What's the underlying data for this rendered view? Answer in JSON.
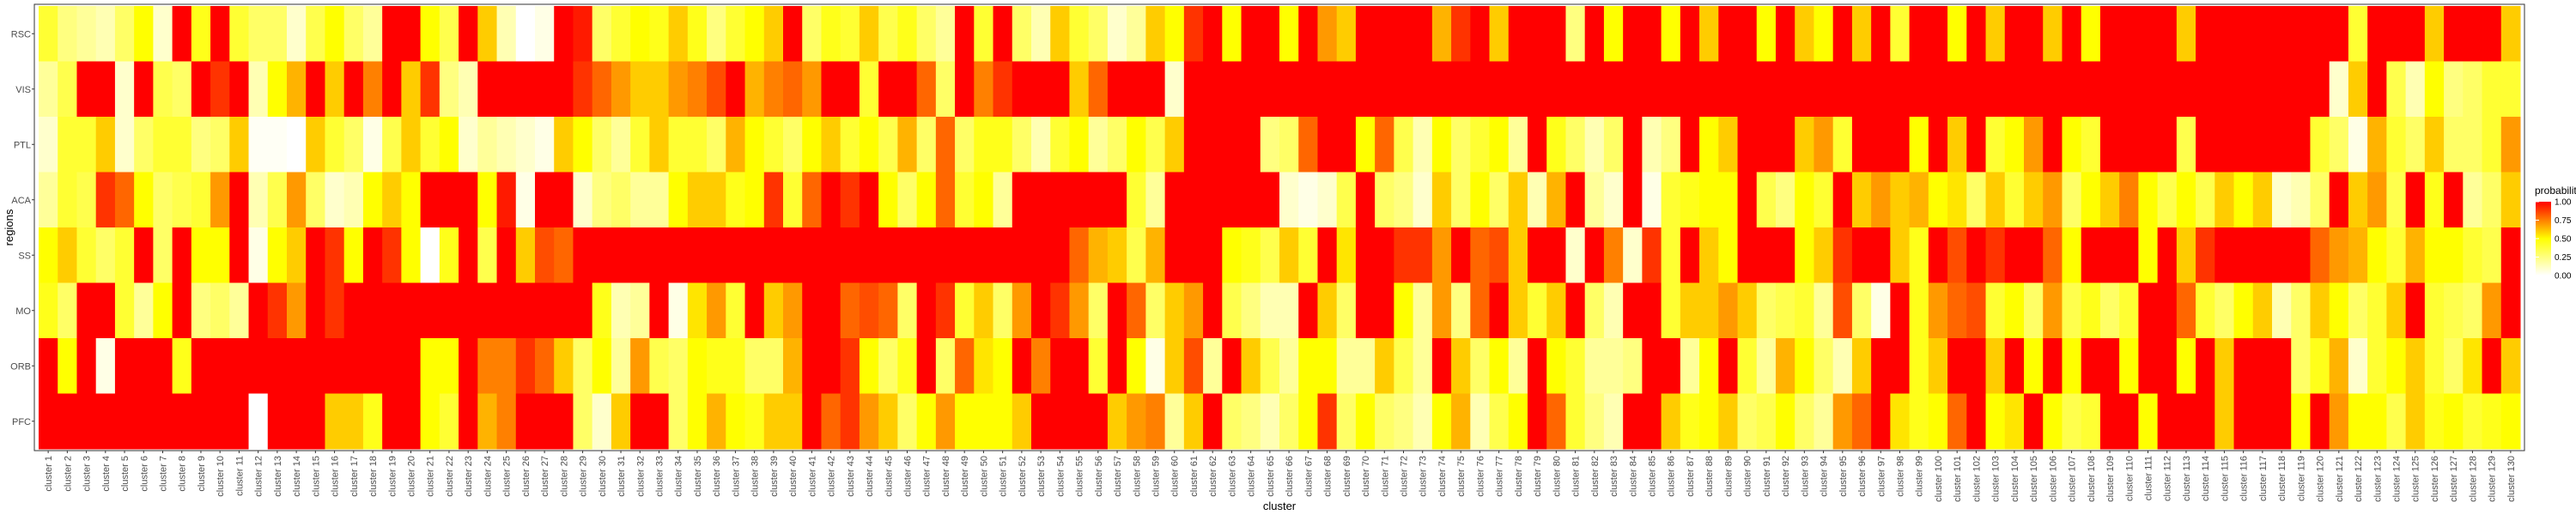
{
  "chart_data": {
    "type": "heatmap",
    "xlabel": "cluster",
    "ylabel": "regions",
    "legend": {
      "title": "probability",
      "placement": "right",
      "ticks": [
        {
          "value": 1.0,
          "label": "1.00"
        },
        {
          "value": 0.75,
          "label": "0.75"
        },
        {
          "value": 0.5,
          "label": "0.50"
        },
        {
          "value": 0.25,
          "label": "0.25"
        },
        {
          "value": 0.0,
          "label": "0.00"
        }
      ]
    },
    "color_scale": {
      "low": "#ffffff",
      "mid": "#ffff00",
      "high": "#ff0000"
    },
    "y_categories": [
      "RSC",
      "VIS",
      "PTL",
      "ACA",
      "SS",
      "MO",
      "ORB",
      "PFC"
    ],
    "x_categories": [
      "cluster 1",
      "cluster 2",
      "cluster 3",
      "cluster 4",
      "cluster 5",
      "cluster 6",
      "cluster 7",
      "cluster 8",
      "cluster 9",
      "cluster 10",
      "cluster 11",
      "cluster 12",
      "cluster 13",
      "cluster 14",
      "cluster 15",
      "cluster 16",
      "cluster 17",
      "cluster 18",
      "cluster 19",
      "cluster 20",
      "cluster 21",
      "cluster 22",
      "cluster 23",
      "cluster 24",
      "cluster 25",
      "cluster 26",
      "cluster 27",
      "cluster 28",
      "cluster 29",
      "cluster 30",
      "cluster 31",
      "cluster 32",
      "cluster 33",
      "cluster 34",
      "cluster 35",
      "cluster 36",
      "cluster 37",
      "cluster 38",
      "cluster 39",
      "cluster 40",
      "cluster 41",
      "cluster 42",
      "cluster 43",
      "cluster 44",
      "cluster 45",
      "cluster 46",
      "cluster 47",
      "cluster 48",
      "cluster 49",
      "cluster 50",
      "cluster 51",
      "cluster 52",
      "cluster 53",
      "cluster 54",
      "cluster 55",
      "cluster 56",
      "cluster 57",
      "cluster 58",
      "cluster 59",
      "cluster 60",
      "cluster 61",
      "cluster 62",
      "cluster 63",
      "cluster 64",
      "cluster 65",
      "cluster 66",
      "cluster 67",
      "cluster 68",
      "cluster 69",
      "cluster 70",
      "cluster 71",
      "cluster 72",
      "cluster 73",
      "cluster 74",
      "cluster 75",
      "cluster 76",
      "cluster 77",
      "cluster 78",
      "cluster 79",
      "cluster 80",
      "cluster 81",
      "cluster 82",
      "cluster 83",
      "cluster 84",
      "cluster 85",
      "cluster 86",
      "cluster 87",
      "cluster 88",
      "cluster 89",
      "cluster 90",
      "cluster 91",
      "cluster 92",
      "cluster 93",
      "cluster 94",
      "cluster 95",
      "cluster 96",
      "cluster 97",
      "cluster 98",
      "cluster 99",
      "cluster 100",
      "cluster 101",
      "cluster 102",
      "cluster 103",
      "cluster 104",
      "cluster 105",
      "cluster 106",
      "cluster 107",
      "cluster 108",
      "cluster 109",
      "cluster 110",
      "cluster 111",
      "cluster 112",
      "cluster 113",
      "cluster 114",
      "cluster 115",
      "cluster 116",
      "cluster 117",
      "cluster 118",
      "cluster 119",
      "cluster 120",
      "cluster 121",
      "cluster 122",
      "cluster 123",
      "cluster 124",
      "cluster 125",
      "cluster 126",
      "cluster 127",
      "cluster 128",
      "cluster 129",
      "cluster 130"
    ],
    "values": [
      [
        0.4,
        0.25,
        0.2,
        0.15,
        0.3,
        0.5,
        0.1,
        1,
        0.45,
        1,
        0.4,
        0.3,
        0.3,
        0.1,
        0.35,
        0.5,
        0.3,
        0.2,
        1,
        1,
        0.5,
        0.35,
        1,
        0.6,
        0.15,
        0,
        0.05,
        1,
        0.95,
        0.3,
        0.4,
        0.5,
        0.45,
        0.6,
        0.45,
        0.25,
        0.4,
        0.5,
        0.6,
        1,
        0.3,
        0.45,
        0.4,
        0.6,
        0.35,
        0.45,
        0.3,
        0.2,
        1,
        0.4,
        1,
        0.3,
        0.15,
        0.6,
        0.4,
        0.3,
        0.1,
        0.2,
        0.6,
        0.5,
        0.9,
        1,
        0.5,
        1,
        1,
        0.5,
        1,
        0.7,
        0.6,
        1,
        1,
        1,
        1,
        0.65,
        0.9,
        1,
        0.6,
        1,
        1,
        1,
        0.25,
        1,
        0.5,
        1,
        1,
        0.5,
        1,
        0.6,
        1,
        1,
        0.5,
        1,
        0.6,
        0.5,
        1,
        0.6,
        1,
        0.4,
        1,
        1,
        0.5,
        1,
        0.6,
        1,
        1,
        0.6,
        1,
        0.5,
        1,
        1,
        1,
        1,
        0.6,
        1,
        1,
        1,
        1,
        1,
        1,
        1,
        1,
        0.4,
        1,
        1,
        1,
        0.6,
        1,
        1,
        1,
        0.6
      ],
      [
        0.2,
        0.35,
        1,
        1,
        0.1,
        1,
        0.35,
        0.3,
        1,
        0.9,
        1,
        0.15,
        0.5,
        0.65,
        1,
        0.6,
        1,
        0.75,
        1,
        0.6,
        0.9,
        0.25,
        0.15,
        1,
        1,
        1,
        1,
        1,
        0.9,
        0.8,
        0.7,
        0.6,
        0.6,
        0.7,
        0.75,
        0.85,
        1,
        0.65,
        0.75,
        0.8,
        0.7,
        1,
        1,
        0.4,
        1,
        1,
        0.8,
        0.3,
        1,
        0.75,
        0.9,
        1,
        1,
        1,
        0.6,
        0.8,
        1,
        1,
        1,
        0.1,
        1,
        1,
        1,
        1,
        1,
        1,
        1,
        1,
        1,
        1,
        1,
        1,
        1,
        1,
        1,
        1,
        1,
        1,
        1,
        1,
        1,
        1,
        1,
        1,
        1,
        1,
        1,
        1,
        1,
        1,
        1,
        1,
        1,
        1,
        1,
        1,
        1,
        1,
        1,
        1,
        1,
        1,
        1,
        1,
        1,
        1,
        1,
        1,
        1,
        1,
        1,
        1,
        1,
        1,
        1,
        1,
        1,
        1,
        1,
        1,
        0.1,
        0.6,
        1,
        0.35,
        0.15,
        0.5,
        0.25,
        0.3,
        0.4,
        0.4
      ],
      [
        0.1,
        0.4,
        0.4,
        0.6,
        0.1,
        0.3,
        0.4,
        0.4,
        0.25,
        0.3,
        0.6,
        0.02,
        0.02,
        0,
        0.6,
        0.4,
        0.3,
        0.05,
        0.35,
        0.6,
        0.4,
        0.5,
        0.1,
        0.2,
        0.15,
        0.1,
        0.05,
        0.6,
        0.5,
        0.3,
        0.2,
        0.4,
        0.6,
        0.4,
        0.4,
        0.3,
        0.65,
        0.5,
        0.4,
        0.3,
        0.5,
        0.6,
        0.4,
        0.5,
        0.35,
        0.65,
        0.3,
        0.8,
        0.3,
        0.45,
        0.45,
        0.3,
        0.15,
        0.4,
        0.5,
        0.2,
        0.3,
        0.5,
        0.35,
        0.6,
        1,
        1,
        1,
        1,
        0.25,
        0.3,
        0.8,
        1,
        1,
        0.5,
        0.8,
        0.35,
        0.15,
        0.5,
        0.3,
        0.4,
        0.5,
        0.2,
        1,
        0.45,
        0.3,
        0.15,
        0.3,
        1,
        0.15,
        0.25,
        1,
        0.5,
        0.6,
        1,
        1,
        1,
        0.6,
        0.7,
        0.4,
        1,
        1,
        1,
        0.5,
        1,
        0.6,
        1,
        0.4,
        0.5,
        0.7,
        1,
        0.5,
        0.4,
        1,
        1,
        1,
        1,
        0.35,
        1,
        1,
        1,
        1,
        1,
        1,
        0.4,
        0.3,
        0.05,
        0.65,
        0.4,
        0.3,
        0.6,
        0.3,
        0.3,
        0.4,
        0.7
      ],
      [
        0.2,
        0.4,
        0.35,
        0.9,
        0.8,
        0.5,
        0.3,
        0.35,
        0.4,
        0.7,
        1,
        0.15,
        0.35,
        0.7,
        0.3,
        0.1,
        0.15,
        0.5,
        0.6,
        0.5,
        1,
        1,
        1,
        0.5,
        0.95,
        0.05,
        1,
        1,
        0.1,
        0.25,
        0.3,
        0.2,
        0.2,
        0.5,
        0.6,
        0.6,
        0.45,
        0.5,
        0.9,
        0.4,
        0.8,
        1,
        0.9,
        1,
        0.5,
        0.3,
        0.5,
        0.8,
        0.4,
        0.5,
        0.2,
        1,
        1,
        1,
        1,
        1,
        1,
        0.4,
        0.2,
        1,
        1,
        1,
        1,
        1,
        1,
        0.1,
        0.05,
        0.1,
        0.35,
        1,
        0.3,
        0.25,
        0.1,
        0.6,
        0.3,
        0.5,
        0.3,
        0.6,
        0.15,
        0.65,
        1,
        0.2,
        0.1,
        1,
        0.05,
        0.4,
        0.45,
        0.5,
        0.5,
        1,
        0.35,
        0.25,
        0.5,
        0.4,
        1,
        0.6,
        0.7,
        0.6,
        0.65,
        0.5,
        0.55,
        0.3,
        0.6,
        0.4,
        0.6,
        0.7,
        0.3,
        0.5,
        0.6,
        0.75,
        0.5,
        0.35,
        0.5,
        0.35,
        0.6,
        0.5,
        0.6,
        0.1,
        0.15,
        0.3,
        1,
        0.6,
        0.7,
        0.35,
        1,
        0.45,
        1,
        0.2,
        0.3,
        0.6
      ],
      [
        0.5,
        0.6,
        0.4,
        0.3,
        0.4,
        1,
        0.3,
        1,
        0.5,
        0.5,
        1,
        0.05,
        0.5,
        0.6,
        1,
        0.9,
        0.5,
        1,
        0.9,
        0.5,
        0,
        0.45,
        1,
        0.35,
        1,
        0.6,
        0.85,
        0.8,
        1,
        1,
        1,
        1,
        1,
        1,
        1,
        1,
        1,
        1,
        1,
        1,
        1,
        1,
        1,
        1,
        1,
        1,
        1,
        1,
        1,
        1,
        1,
        1,
        1,
        1,
        0.8,
        0.65,
        0.6,
        0.35,
        0.65,
        1,
        1,
        1,
        0.5,
        0.45,
        0.35,
        0.6,
        0.4,
        1,
        0.55,
        1,
        1,
        0.9,
        0.9,
        0.7,
        1,
        0.8,
        0.85,
        0.6,
        1,
        1,
        0.1,
        1,
        0.75,
        0.1,
        0.9,
        0.4,
        1,
        0.6,
        0.5,
        1,
        1,
        1,
        0.5,
        0.6,
        0.9,
        1,
        1,
        0.6,
        0.45,
        1,
        0.85,
        1,
        0.9,
        1,
        1,
        0.8,
        0.5,
        1,
        1,
        1,
        0.5,
        1,
        0.6,
        0.9,
        1,
        1,
        1,
        1,
        1,
        0.8,
        0.7,
        0.65,
        0.5,
        0.4,
        0.65,
        0.5,
        0.5,
        0.4,
        0.35,
        1
      ],
      [
        0.45,
        0.3,
        1,
        1,
        0.4,
        0.2,
        0.5,
        1,
        0.25,
        0.3,
        0.2,
        1,
        0.9,
        0.7,
        1,
        0.9,
        1,
        1,
        1,
        1,
        1,
        1,
        1,
        1,
        1,
        1,
        1,
        1,
        1,
        0.45,
        0.15,
        0.2,
        1,
        0.05,
        0.55,
        0.7,
        0.4,
        1,
        0.6,
        0.7,
        1,
        1,
        0.8,
        0.85,
        0.8,
        0.3,
        1,
        0.9,
        0.4,
        0.6,
        0.3,
        0.7,
        1,
        0.9,
        0.7,
        0.3,
        1,
        0.8,
        0.3,
        0.6,
        0.7,
        1,
        0.35,
        0.25,
        0.15,
        0.15,
        1,
        0.6,
        0.3,
        1,
        1,
        0.5,
        0.2,
        0.7,
        0.25,
        0.8,
        1,
        0.6,
        0.4,
        0.6,
        1,
        0.3,
        0.15,
        1,
        1,
        0.4,
        0.6,
        0.6,
        0.7,
        0.6,
        0.3,
        0.35,
        0.4,
        0.2,
        0.85,
        0.3,
        0.05,
        1,
        0.45,
        0.7,
        0.8,
        0.85,
        0.4,
        0.5,
        0.3,
        0.7,
        0.35,
        0.45,
        0.3,
        0.4,
        1,
        1,
        0.8,
        0.4,
        0.3,
        0.5,
        0.6,
        0.15,
        0.3,
        0.6,
        0.5,
        0.3,
        0.4,
        0.6,
        1,
        0.4,
        0.35,
        0.3,
        0.7,
        1
      ],
      [
        1,
        0.5,
        1,
        0.05,
        1,
        1,
        1,
        0.45,
        1,
        1,
        1,
        1,
        1,
        1,
        1,
        1,
        1,
        1,
        1,
        1,
        0.5,
        0.5,
        1,
        0.75,
        0.75,
        0.9,
        0.8,
        0.6,
        0.3,
        0.5,
        0.2,
        0.7,
        0.35,
        0.3,
        0.5,
        0.45,
        0.45,
        0.3,
        0.3,
        0.65,
        1,
        1,
        0.9,
        0.5,
        0.3,
        0.45,
        1,
        0.3,
        0.8,
        0.55,
        0.5,
        1,
        0.75,
        1,
        1,
        0.4,
        1,
        0.5,
        0.05,
        0.6,
        0.85,
        0.2,
        1,
        0.6,
        0.35,
        0.2,
        0.5,
        0.5,
        0.2,
        0.2,
        0.6,
        0.35,
        0.2,
        1,
        0.6,
        0.3,
        0.5,
        0.2,
        1,
        0.5,
        0.4,
        0.2,
        0.2,
        0.25,
        1,
        1,
        0.2,
        0.5,
        1,
        0.4,
        0.2,
        0.65,
        0.5,
        0.3,
        0.15,
        0.6,
        1,
        1,
        0.45,
        0.6,
        1,
        1,
        0.6,
        1,
        0.5,
        1,
        0.5,
        1,
        1,
        0.5,
        1,
        1,
        0.5,
        1,
        0.6,
        1,
        1,
        1,
        0.3,
        0.45,
        0.65,
        0.1,
        0.4,
        0.5,
        0.6,
        0.4,
        0.3,
        0.55,
        1,
        0.6
      ],
      [
        1,
        1,
        1,
        1,
        1,
        1,
        1,
        1,
        1,
        1,
        1,
        0,
        1,
        1,
        1,
        0.6,
        0.6,
        0.45,
        1,
        1,
        0.5,
        0.4,
        1,
        0.65,
        0.75,
        1,
        1,
        1,
        0.3,
        0.1,
        0.6,
        1,
        1,
        0.3,
        0.5,
        0.65,
        0.5,
        0.45,
        0.6,
        0.6,
        1,
        0.8,
        0.9,
        0.7,
        0.6,
        0.3,
        0.5,
        0.7,
        0.5,
        0.5,
        0.5,
        0.6,
        1,
        1,
        1,
        1,
        0.6,
        0.7,
        0.75,
        0.2,
        0.6,
        1,
        0.3,
        0.25,
        0.15,
        0.3,
        0.5,
        0.9,
        0.3,
        0.5,
        0.3,
        0.25,
        0.15,
        0.5,
        0.65,
        0.15,
        0.35,
        0.5,
        1,
        0.8,
        0.4,
        0.25,
        0.15,
        1,
        1,
        0.6,
        0.45,
        0.5,
        0.6,
        0.3,
        0.35,
        0.5,
        0.3,
        0.2,
        0.7,
        0.8,
        1,
        0.55,
        0.45,
        0.5,
        0.8,
        1,
        0.5,
        0.55,
        1,
        0.5,
        0.35,
        0.4,
        1,
        1,
        0.5,
        1,
        1,
        1,
        0.6,
        1,
        1,
        1,
        0.5,
        1,
        0.7,
        0.5,
        0.5,
        0.35,
        0.6,
        0.45,
        0.5,
        0.4,
        0.45,
        0.5
      ]
    ]
  }
}
